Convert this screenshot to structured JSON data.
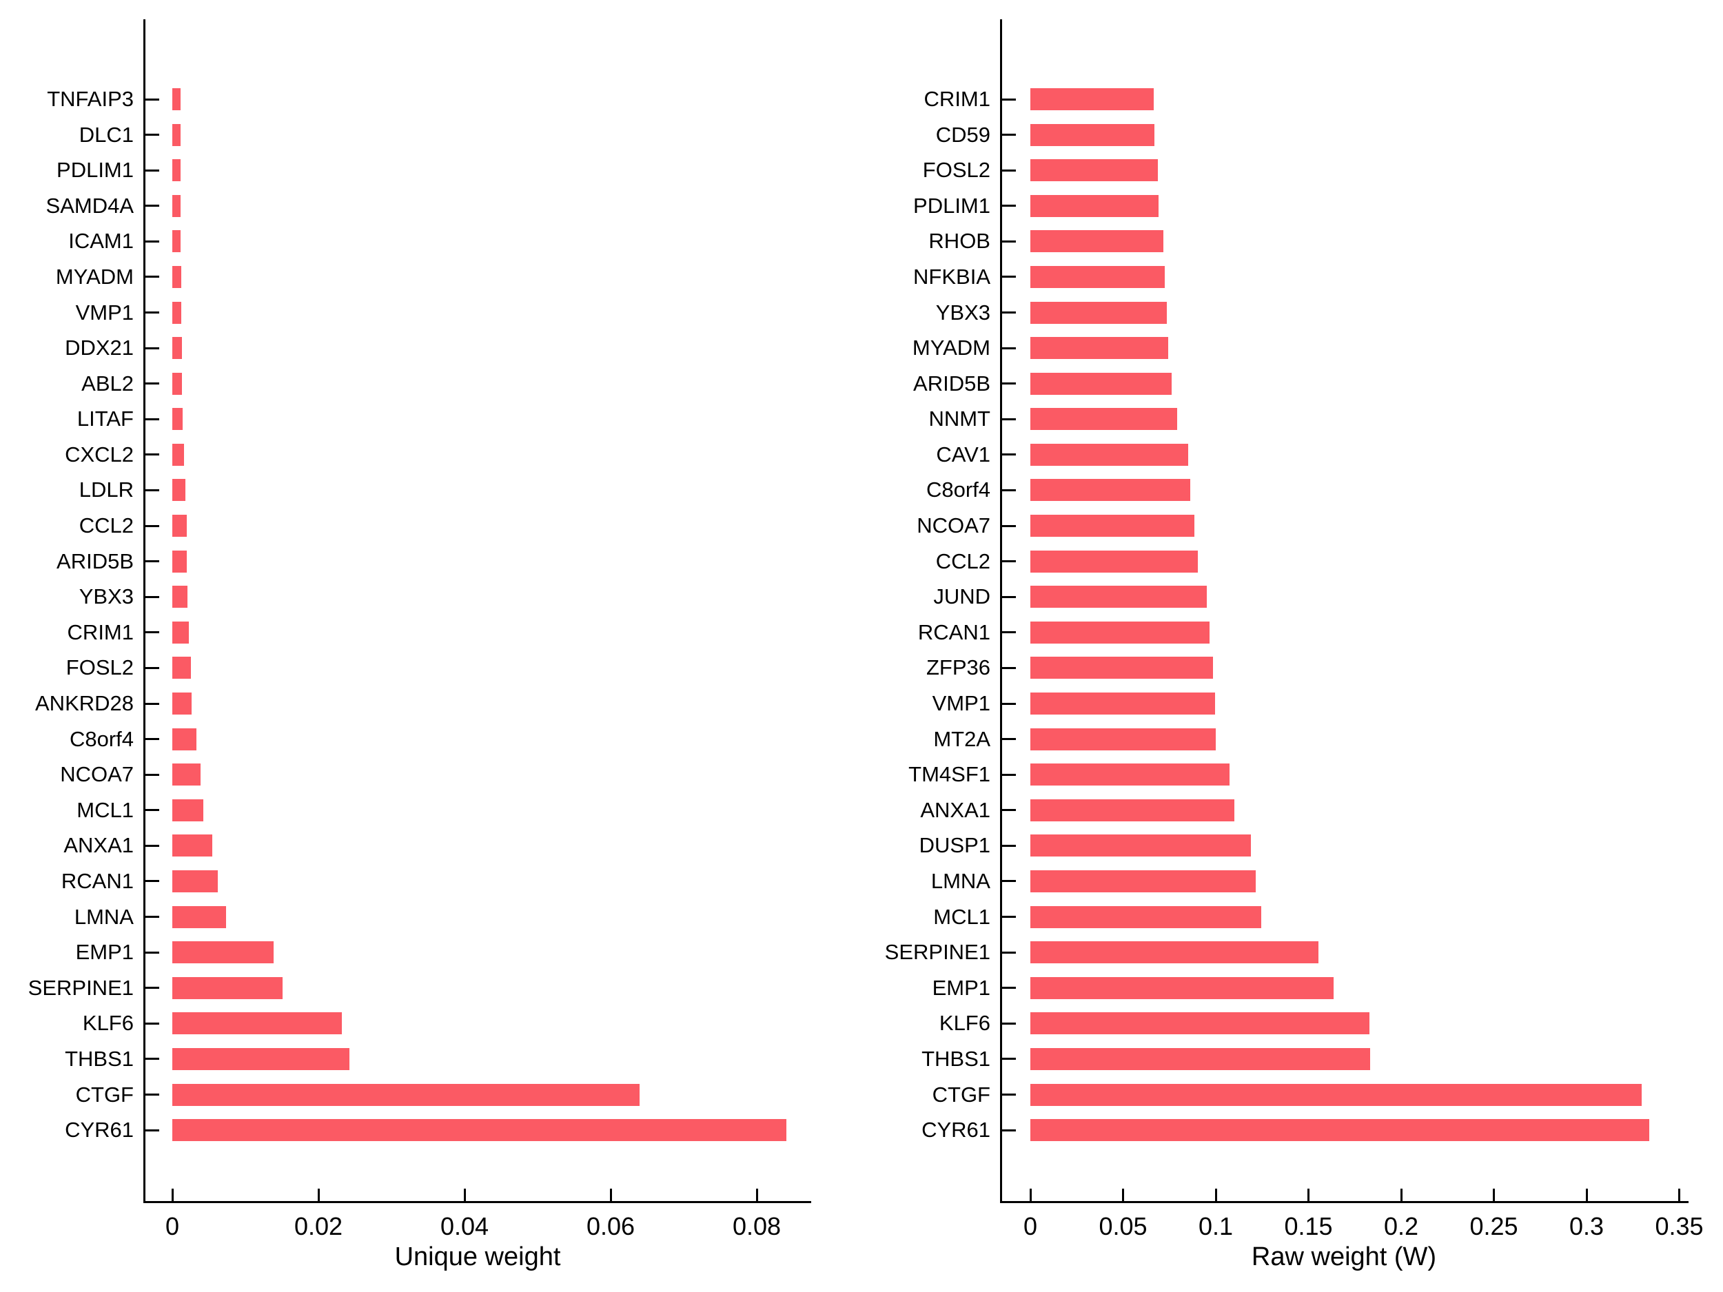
{
  "figure": {
    "background": "#ffffff",
    "bar_color": "#fb5a64",
    "axis_color": "#000000",
    "text_color": "#000000"
  },
  "chart_data": [
    {
      "type": "bar",
      "orientation": "horizontal",
      "title": "",
      "xlabel": "Unique weight",
      "ylabel": "",
      "xlim": [
        0,
        0.0875
      ],
      "xticks": [
        0,
        0.02,
        0.04,
        0.06,
        0.08
      ],
      "xtick_labels": [
        "0",
        "0.02",
        "0.04",
        "0.06",
        "0.08"
      ],
      "grid": false,
      "legend": null,
      "categories": [
        "TNFAIP3",
        "DLC1",
        "PDLIM1",
        "SAMD4A",
        "ICAM1",
        "MYADM",
        "VMP1",
        "DDX21",
        "ABL2",
        "LITAF",
        "CXCL2",
        "LDLR",
        "CCL2",
        "ARID5B",
        "YBX3",
        "CRIM1",
        "FOSL2",
        "ANKRD28",
        "C8orf4",
        "NCOA7",
        "MCL1",
        "ANXA1",
        "RCAN1",
        "LMNA",
        "EMP1",
        "SERPINE1",
        "KLF6",
        "THBS1",
        "CTGF",
        "CYR61"
      ],
      "values": [
        0.0011,
        0.00111,
        0.00112,
        0.00113,
        0.00115,
        0.00122,
        0.00125,
        0.0013,
        0.00136,
        0.00143,
        0.00165,
        0.00181,
        0.00199,
        0.00202,
        0.00205,
        0.0023,
        0.00257,
        0.00262,
        0.0033,
        0.0039,
        0.00425,
        0.0055,
        0.0062,
        0.00735,
        0.0139,
        0.0151,
        0.0232,
        0.0242,
        0.064,
        0.0841
      ]
    },
    {
      "type": "bar",
      "orientation": "horizontal",
      "title": "",
      "xlabel": "Raw weight (W)",
      "ylabel": "",
      "xlim": [
        0,
        0.355
      ],
      "xticks": [
        0,
        0.05,
        0.1,
        0.15,
        0.2,
        0.25,
        0.3,
        0.35
      ],
      "xtick_labels": [
        "0",
        "0.05",
        "0.1",
        "0.15",
        "0.2",
        "0.25",
        "0.3",
        "0.35"
      ],
      "grid": false,
      "legend": null,
      "categories": [
        "CRIM1",
        "CD59",
        "FOSL2",
        "PDLIM1",
        "RHOB",
        "NFKBIA",
        "YBX3",
        "MYADM",
        "ARID5B",
        "NNMT",
        "CAV1",
        "C8orf4",
        "NCOA7",
        "CCL2",
        "JUND",
        "RCAN1",
        "ZFP36",
        "VMP1",
        "MT2A",
        "TM4SF1",
        "ANXA1",
        "DUSP1",
        "LMNA",
        "MCL1",
        "SERPINE1",
        "EMP1",
        "KLF6",
        "THBS1",
        "CTGF",
        "CYR61"
      ],
      "values": [
        0.0665,
        0.0671,
        0.0688,
        0.0692,
        0.0718,
        0.0726,
        0.0736,
        0.0744,
        0.0762,
        0.0791,
        0.0852,
        0.0863,
        0.0885,
        0.0903,
        0.0953,
        0.0966,
        0.0986,
        0.0995,
        0.1001,
        0.1075,
        0.1099,
        0.1189,
        0.1215,
        0.1246,
        0.1554,
        0.1636,
        0.1828,
        0.1833,
        0.3297,
        0.3337
      ]
    }
  ]
}
